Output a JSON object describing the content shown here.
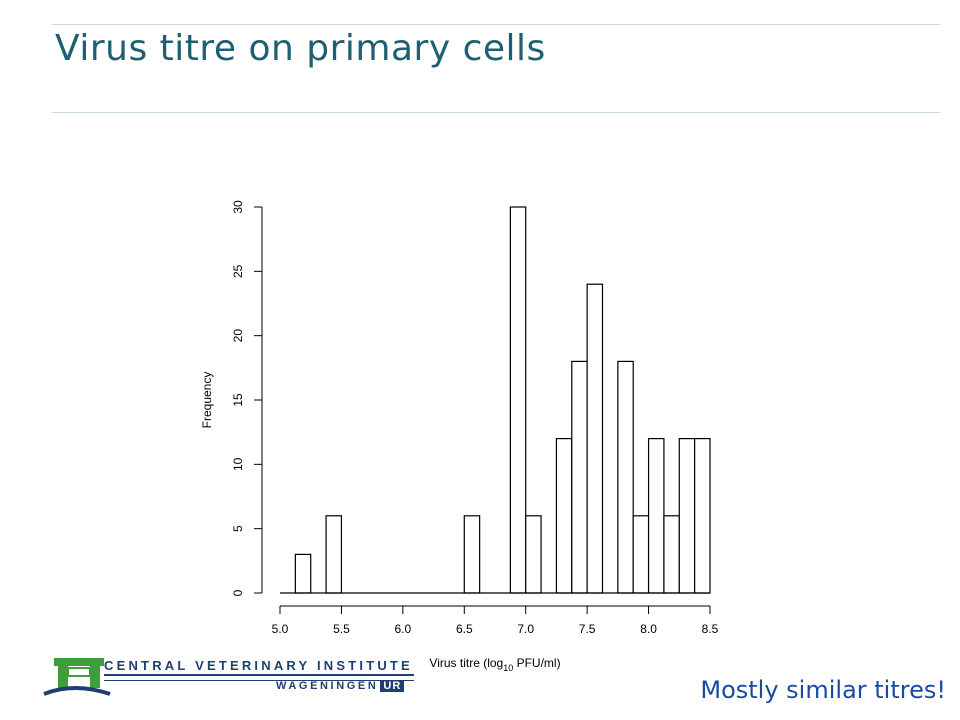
{
  "slide": {
    "title": "Virus titre on primary cells",
    "caption": "Mostly similar titres!"
  },
  "logo": {
    "line1": "CENTRAL VETERINARY INSTITUTE",
    "line2_prefix": "WAGENINGEN",
    "line2_badge": "UR",
    "colors": {
      "green": "#3f9e3a",
      "navy": "#1f3f73"
    }
  },
  "chart_data": {
    "type": "bar",
    "subtype": "histogram",
    "xlabel": "Virus titre (log10 PFU/ml)",
    "ylabel": "Frequency",
    "xlim": [
      5.0,
      8.5
    ],
    "ylim": [
      0,
      30
    ],
    "x_ticks": [
      "5.0",
      "5.5",
      "6.0",
      "6.5",
      "7.0",
      "7.5",
      "8.0",
      "8.5"
    ],
    "y_ticks": [
      "0",
      "5",
      "10",
      "15",
      "20",
      "25",
      "30"
    ],
    "bin_width": 0.125,
    "bins": [
      {
        "x0": 5.125,
        "x1": 5.25,
        "count": 3
      },
      {
        "x0": 5.375,
        "x1": 5.5,
        "count": 6
      },
      {
        "x0": 6.5,
        "x1": 6.625,
        "count": 6
      },
      {
        "x0": 6.875,
        "x1": 7.0,
        "count": 30
      },
      {
        "x0": 7.0,
        "x1": 7.125,
        "count": 6
      },
      {
        "x0": 7.25,
        "x1": 7.375,
        "count": 12
      },
      {
        "x0": 7.375,
        "x1": 7.5,
        "count": 18
      },
      {
        "x0": 7.5,
        "x1": 7.625,
        "count": 24
      },
      {
        "x0": 7.75,
        "x1": 7.875,
        "count": 18
      },
      {
        "x0": 7.875,
        "x1": 8.0,
        "count": 6
      },
      {
        "x0": 8.0,
        "x1": 8.125,
        "count": 12
      },
      {
        "x0": 8.125,
        "x1": 8.25,
        "count": 6
      },
      {
        "x0": 8.25,
        "x1": 8.375,
        "count": 12
      },
      {
        "x0": 8.375,
        "x1": 8.5,
        "count": 12
      }
    ],
    "baseline_range": [
      5.0,
      8.5
    ],
    "colors": {
      "bar_fill": "#ffffff",
      "bar_stroke": "#000000"
    }
  }
}
